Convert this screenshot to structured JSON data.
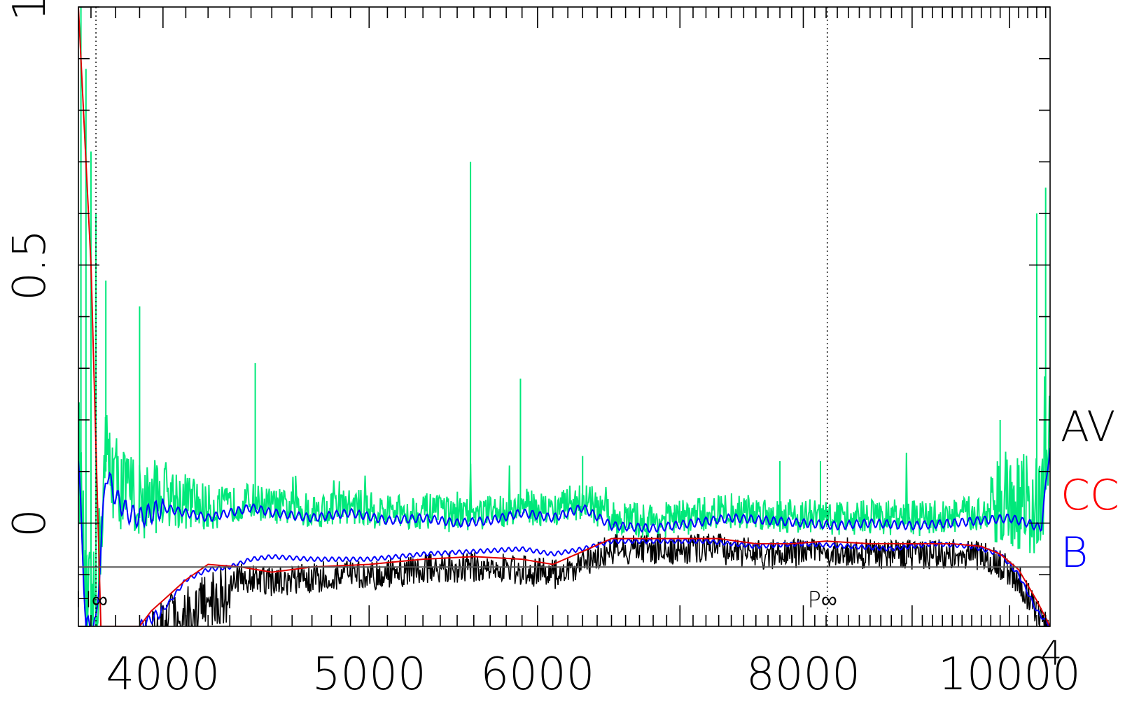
{
  "chart_data": {
    "type": "line",
    "title": "",
    "xlabel": "",
    "ylabel": "",
    "x_scale": "log",
    "xlim": [
      3650,
      10450
    ],
    "ylim": [
      -0.2,
      1.0
    ],
    "grid": false,
    "x_tick_labels": [
      {
        "value": 4000,
        "label": "4000"
      },
      {
        "value": 5000,
        "label": "5000"
      },
      {
        "value": 6000,
        "label": "6000"
      },
      {
        "value": 8000,
        "label": "8000"
      },
      {
        "value": 10000,
        "label": "10000"
      }
    ],
    "x_axis_overlay_label": "4",
    "y_tick_labels": [
      {
        "value": 0,
        "label": "0"
      },
      {
        "value": 0.5,
        "label": "0.5"
      },
      {
        "value": 1,
        "label": "1"
      }
    ],
    "baseline_y": -0.085,
    "reference_lines": [
      {
        "x": 3720,
        "label": "H∞"
      },
      {
        "x": 8210,
        "label": "P∞"
      }
    ],
    "legend": {
      "placement": "right",
      "entries": [
        {
          "label": "AV",
          "color": "#000000"
        },
        {
          "label": "CC",
          "color": "#ff0000"
        },
        {
          "label": "B",
          "color": "#0000ff"
        }
      ]
    },
    "colors": {
      "noise_band": "#00e87a",
      "spectrum": "#000000",
      "continuum": "#e00000",
      "smoothed": "#0000ff",
      "baseline": "#555555"
    },
    "series": [
      {
        "key": "continuum",
        "color": "#e00000",
        "x": [
          3650,
          3700,
          3740,
          3800,
          3850,
          3900,
          3950,
          4000,
          4100,
          4200,
          4350,
          4500,
          4700,
          5000,
          5300,
          5600,
          5900,
          6100,
          6300,
          6500,
          6700,
          7000,
          7300,
          7600,
          7900,
          8200,
          8600,
          9000,
          9400,
          9700,
          9900,
          10100,
          10300,
          10450
        ],
        "y": [
          1.0,
          0.5,
          -0.2,
          -0.2,
          -0.2,
          -0.2,
          -0.17,
          -0.15,
          -0.11,
          -0.08,
          -0.085,
          -0.095,
          -0.085,
          -0.08,
          -0.07,
          -0.065,
          -0.07,
          -0.08,
          -0.055,
          -0.03,
          -0.03,
          -0.03,
          -0.03,
          -0.04,
          -0.04,
          -0.035,
          -0.04,
          -0.04,
          -0.04,
          -0.045,
          -0.06,
          -0.09,
          -0.15,
          -0.2
        ]
      },
      {
        "key": "smoothed_upper",
        "color": "#0000ff",
        "x": [
          3650,
          3680,
          3720,
          3760,
          3800,
          3850,
          3900,
          4000,
          4100,
          4200,
          4300,
          4400,
          4500,
          4700,
          4900,
          5100,
          5300,
          5500,
          5700,
          5900,
          6100,
          6300,
          6500,
          6800,
          7100,
          7400,
          7700,
          8000,
          8300,
          8600,
          9000,
          9400,
          9700,
          10000,
          10200,
          10350,
          10450
        ],
        "y": [
          0.12,
          -0.2,
          -0.2,
          0.1,
          0.05,
          0.02,
          0.01,
          0.03,
          0.02,
          0.01,
          0.02,
          0.03,
          0.02,
          0.01,
          0.02,
          0.005,
          0.01,
          0.0,
          0.005,
          0.02,
          0.01,
          0.03,
          -0.005,
          -0.01,
          0.0,
          0.01,
          0.005,
          0.0,
          -0.005,
          0.0,
          -0.005,
          0.0,
          0.005,
          0.01,
          0.0,
          -0.01,
          0.15
        ]
      },
      {
        "key": "smoothed_lower",
        "color": "#0000ff",
        "x": [
          3900,
          4000,
          4100,
          4200,
          4300,
          4400,
          4500,
          4700,
          5000,
          5300,
          5600,
          5900,
          6100,
          6300,
          6500,
          6800,
          7200,
          7600,
          8000,
          8400,
          8800,
          9200,
          9600,
          9900,
          10100,
          10300,
          10450
        ],
        "y": [
          -0.2,
          -0.17,
          -0.11,
          -0.09,
          -0.085,
          -0.07,
          -0.065,
          -0.07,
          -0.07,
          -0.06,
          -0.055,
          -0.05,
          -0.06,
          -0.05,
          -0.035,
          -0.035,
          -0.035,
          -0.045,
          -0.04,
          -0.045,
          -0.05,
          -0.04,
          -0.045,
          -0.06,
          -0.1,
          -0.17,
          -0.2
        ]
      }
    ]
  }
}
